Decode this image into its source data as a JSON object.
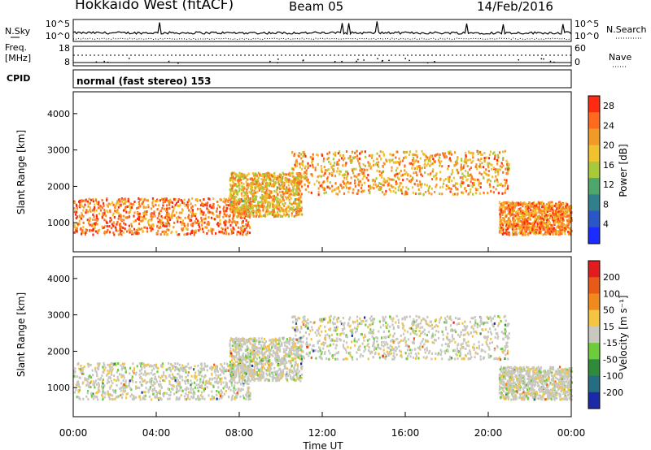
{
  "header": {
    "station": "Hokkaido West (fitACF)",
    "beam": "Beam 05",
    "date": "14/Feb/2016"
  },
  "summary_panels": {
    "nsky_label": "N.Sky",
    "nsky_ticks": [
      "10^5",
      "10^0"
    ],
    "nsearch_label": "N.Search",
    "nsearch_ticks": [
      "10^5",
      "10^0"
    ],
    "freq_label_line1": "Freq.",
    "freq_label_line2": "[MHz]",
    "freq_ticks": [
      "18",
      "8"
    ],
    "nave_label": "Nave",
    "nave_ticks": [
      "60",
      "0"
    ],
    "cpid_label": "CPID",
    "cpid_text": "normal (fast stereo) 153"
  },
  "chart_data": [
    {
      "type": "heatmap",
      "panel": "power",
      "title": "",
      "xlabel": "",
      "ylabel": "Slant Range [km]",
      "x_range_hours": [
        0,
        24
      ],
      "ylim": [
        200,
        4600
      ],
      "yticks": [
        "1000",
        "2000",
        "3000",
        "4000"
      ],
      "xticks": [
        "00:00",
        "04:00",
        "08:00",
        "12:00",
        "16:00",
        "20:00",
        "00:00"
      ],
      "colorbar": {
        "label": "Power [dB]",
        "ticks": [
          "4",
          "8",
          "12",
          "16",
          "20",
          "24",
          "28"
        ],
        "range": [
          0,
          30
        ],
        "colors": [
          "#1a2cff",
          "#2a56c8",
          "#2f7f8c",
          "#4fa66a",
          "#a9c83a",
          "#f2c12e",
          "#f29a28",
          "#ff6a1e",
          "#ff2a12"
        ]
      },
      "structures": [
        {
          "name": "near-range band",
          "hours": [
            0,
            8.5
          ],
          "range_km": [
            700,
            1700
          ],
          "power_db": 25
        },
        {
          "name": "rising arc",
          "hours": [
            7.5,
            11
          ],
          "range_km": [
            1200,
            2400
          ],
          "power_db": 20
        },
        {
          "name": "far-range band",
          "hours": [
            10.5,
            21
          ],
          "range_km": [
            1800,
            3000
          ],
          "power_db": 22
        },
        {
          "name": "late near-range band",
          "hours": [
            20.5,
            24
          ],
          "range_km": [
            700,
            1600
          ],
          "power_db": 24
        }
      ]
    },
    {
      "type": "heatmap",
      "panel": "velocity",
      "title": "",
      "xlabel": "Time UT",
      "ylabel": "Slant Range [km]",
      "x_range_hours": [
        0,
        24
      ],
      "ylim": [
        200,
        4600
      ],
      "yticks": [
        "1000",
        "2000",
        "3000",
        "4000"
      ],
      "xticks": [
        "00:00",
        "04:00",
        "08:00",
        "12:00",
        "16:00",
        "20:00",
        "00:00"
      ],
      "colorbar": {
        "label": "Velocity [m s⁻¹]",
        "ticks": [
          "200",
          "100",
          "50",
          "15",
          "-15",
          "-50",
          "-100",
          "-200"
        ],
        "range": [
          -250,
          250
        ],
        "colors": [
          "#1d2aa8",
          "#246d82",
          "#2f8a3a",
          "#6ccc3c",
          "#c8c8c0",
          "#f5c542",
          "#f08a1f",
          "#e85a18",
          "#e21c1c"
        ]
      },
      "structures": [
        {
          "name": "near-range band",
          "hours": [
            0,
            8.5
          ],
          "range_km": [
            700,
            1700
          ],
          "velocity_ms": 0
        },
        {
          "name": "rising arc",
          "hours": [
            7.5,
            11
          ],
          "range_km": [
            1200,
            2400
          ],
          "velocity_ms": 0
        },
        {
          "name": "far-range band",
          "hours": [
            10.5,
            21
          ],
          "range_km": [
            1800,
            3000
          ],
          "velocity_ms": 0
        },
        {
          "name": "late near-range band",
          "hours": [
            20.5,
            24
          ],
          "range_km": [
            700,
            1600
          ],
          "velocity_ms": 0
        }
      ]
    }
  ]
}
